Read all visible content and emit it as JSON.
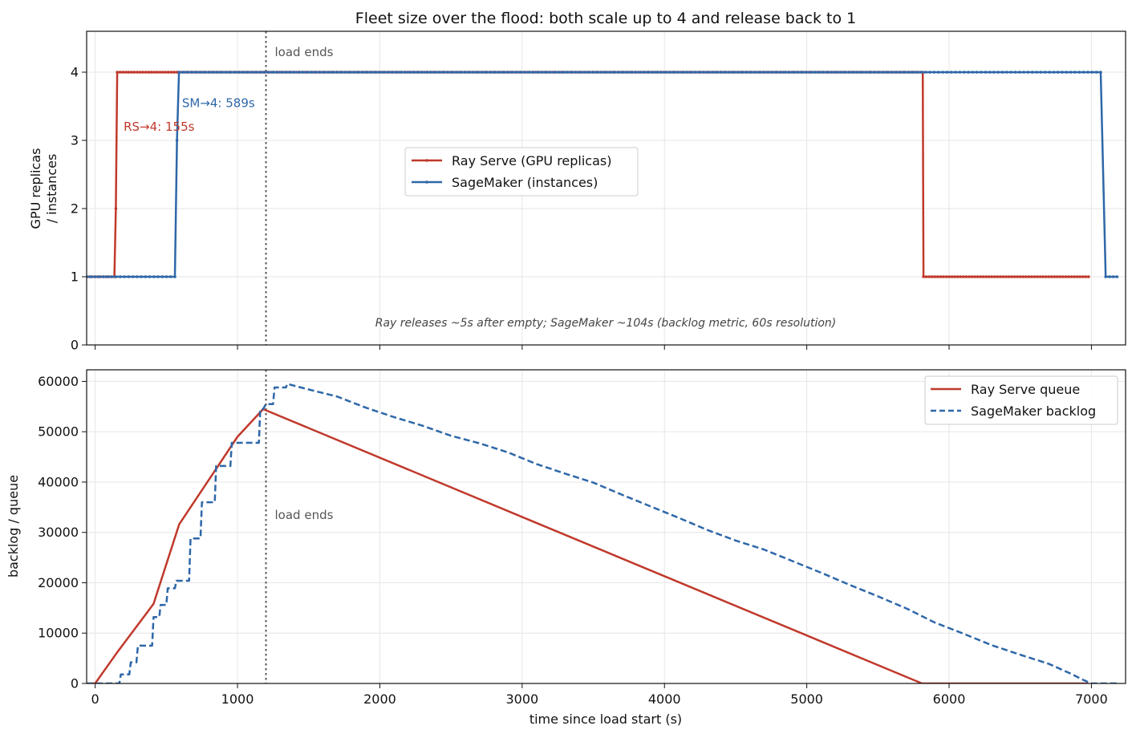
{
  "figure": {
    "title": "Fleet size over the flood: both scale up to 4 and release back to 1",
    "xlabel": "time since load start (s)",
    "x_ticks": [
      0,
      1000,
      2000,
      3000,
      4000,
      5000,
      6000,
      7000
    ],
    "xlim": [
      -60,
      7240
    ]
  },
  "colors": {
    "ray": "#c0392b",
    "sagemaker": "#2e67a8",
    "vline": "#555555",
    "grid": "#e6e6e6",
    "annotation": "#555555",
    "note": "#444444"
  },
  "chart_data": [
    {
      "type": "line",
      "ylabel": [
        "GPU replicas",
        "/ instances"
      ],
      "ylim": [
        0,
        4.6
      ],
      "y_ticks": [
        0,
        1,
        2,
        3,
        4
      ],
      "grid": true,
      "legend_position": "center",
      "legend": [
        {
          "label": "Ray Serve (GPU replicas)",
          "series": "ray",
          "marker": true,
          "dash": false
        },
        {
          "label": "SageMaker (instances)",
          "series": "sagemaker",
          "marker": true,
          "dash": false
        }
      ],
      "vline": {
        "x": 1200,
        "label": "load ends"
      },
      "annotations": [
        {
          "text": "RS→4: 155s",
          "x": 200,
          "y": 3.2,
          "color": "ray"
        },
        {
          "text": "SM→4: 589s",
          "x": 610,
          "y": 3.55,
          "color": "sagemaker"
        }
      ],
      "note": "Ray releases ~5s after empty; SageMaker ~104s (backlog metric, 60s resolution)",
      "series": [
        {
          "name": "Ray Serve (GPU replicas)",
          "key": "ray",
          "points": [
            [
              -60,
              1
            ],
            [
              135,
              1
            ],
            [
              145,
              2
            ],
            [
              155,
              4
            ],
            [
              5815,
              4
            ],
            [
              5820,
              1
            ],
            [
              6980,
              1
            ]
          ],
          "marker_step": 20
        },
        {
          "name": "SageMaker (instances)",
          "key": "sagemaker",
          "points": [
            [
              -60,
              1
            ],
            [
              560,
              1
            ],
            [
              575,
              3
            ],
            [
              589,
              4
            ],
            [
              7065,
              4
            ],
            [
              7100,
              1
            ],
            [
              7180,
              1
            ]
          ],
          "marker_step": 30
        }
      ]
    },
    {
      "type": "line",
      "ylabel": [
        "backlog / queue"
      ],
      "ylim": [
        0,
        62300
      ],
      "y_ticks": [
        0,
        10000,
        20000,
        30000,
        40000,
        50000,
        60000
      ],
      "grid": true,
      "legend_position": "top-right",
      "legend": [
        {
          "label": "Ray Serve queue",
          "series": "ray",
          "marker": false,
          "dash": false
        },
        {
          "label": "SageMaker backlog",
          "series": "sagemaker",
          "marker": false,
          "dash": true
        }
      ],
      "vline": {
        "x": 1200,
        "label": "load ends"
      },
      "series": [
        {
          "name": "Ray Serve queue",
          "key": "ray",
          "dash": false,
          "points": [
            [
              -20,
              0
            ],
            [
              0,
              0
            ],
            [
              150,
              6000
            ],
            [
              410,
              15800
            ],
            [
              590,
              31600
            ],
            [
              1000,
              49000
            ],
            [
              1180,
              54500
            ],
            [
              5810,
              0
            ],
            [
              6980,
              0
            ]
          ]
        },
        {
          "name": "SageMaker backlog",
          "key": "sagemaker",
          "dash": true,
          "points": [
            [
              -60,
              0
            ],
            [
              170,
              0
            ],
            [
              180,
              1800
            ],
            [
              240,
              1800
            ],
            [
              250,
              4200
            ],
            [
              290,
              4200
            ],
            [
              300,
              7500
            ],
            [
              400,
              7500
            ],
            [
              410,
              13200
            ],
            [
              450,
              13200
            ],
            [
              460,
              15600
            ],
            [
              500,
              15600
            ],
            [
              510,
              18900
            ],
            [
              560,
              18900
            ],
            [
              570,
              20400
            ],
            [
              660,
              20400
            ],
            [
              670,
              28800
            ],
            [
              740,
              28800
            ],
            [
              750,
              36000
            ],
            [
              840,
              36000
            ],
            [
              850,
              43200
            ],
            [
              950,
              43200
            ],
            [
              960,
              47800
            ],
            [
              1150,
              47800
            ],
            [
              1160,
              54500
            ],
            [
              1180,
              54500
            ],
            [
              1200,
              55500
            ],
            [
              1250,
              55500
            ],
            [
              1260,
              58800
            ],
            [
              1340,
              58800
            ],
            [
              1350,
              59500
            ],
            [
              1500,
              58400
            ],
            [
              1700,
              57000
            ],
            [
              1900,
              54800
            ],
            [
              2100,
              52900
            ],
            [
              2300,
              51200
            ],
            [
              2500,
              49200
            ],
            [
              2700,
              47700
            ],
            [
              2900,
              45900
            ],
            [
              3100,
              43600
            ],
            [
              3300,
              41700
            ],
            [
              3500,
              39900
            ],
            [
              3700,
              37500
            ],
            [
              3900,
              35200
            ],
            [
              4100,
              32900
            ],
            [
              4300,
              30500
            ],
            [
              4500,
              28400
            ],
            [
              4700,
              26600
            ],
            [
              4900,
              24300
            ],
            [
              5100,
              22000
            ],
            [
              5300,
              19600
            ],
            [
              5500,
              17300
            ],
            [
              5700,
              14900
            ],
            [
              5900,
              12100
            ],
            [
              6100,
              9900
            ],
            [
              6300,
              7600
            ],
            [
              6500,
              5700
            ],
            [
              6700,
              3900
            ],
            [
              6850,
              2000
            ],
            [
              6950,
              600
            ],
            [
              7000,
              0
            ],
            [
              7180,
              0
            ]
          ]
        }
      ]
    }
  ]
}
